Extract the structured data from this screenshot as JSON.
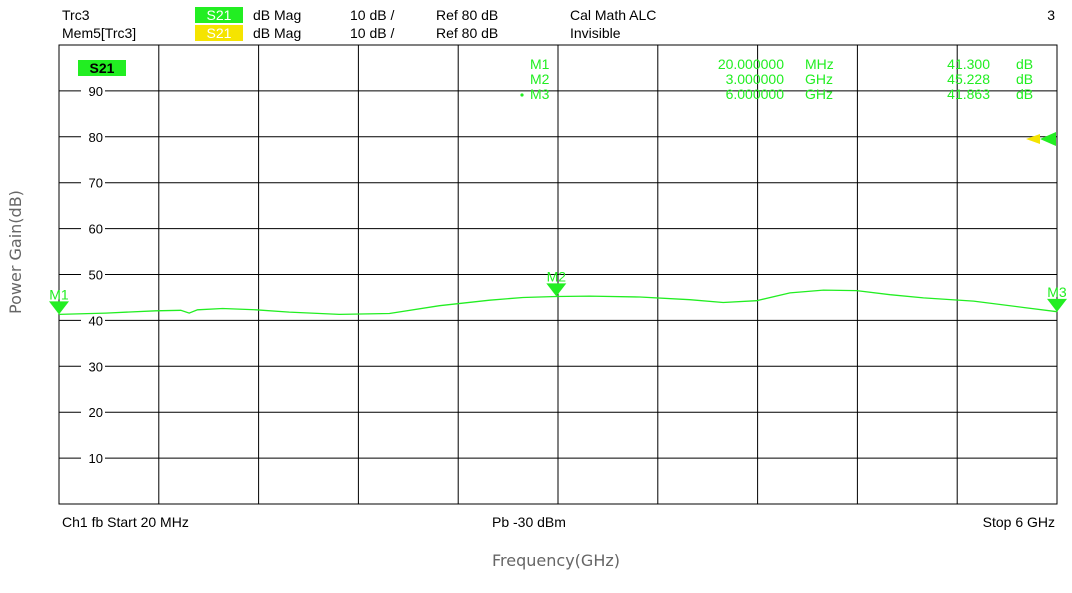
{
  "colors": {
    "trace": "#22ee22",
    "memory": "#f5e400",
    "grid": "#000000",
    "text": "#000000",
    "axis_title": "#666666"
  },
  "header": {
    "row1": {
      "trace": "Trc3",
      "param": "S21",
      "format": "dB Mag",
      "scale": "10 dB /",
      "ref": "Ref 80 dB",
      "status": "Cal Math ALC",
      "channel_num": "3"
    },
    "row2": {
      "trace": "Mem5[Trc3]",
      "param": "S21",
      "format": "dB Mag",
      "scale": "10 dB /",
      "ref": "Ref 80 dB",
      "status": "Invisible"
    }
  },
  "footer": {
    "start": "Ch1  fb  Start  20 MHz",
    "power": "Pb   -30 dBm",
    "stop": "Stop  6 GHz"
  },
  "trace_badge": "S21",
  "marker_table": [
    {
      "name": "M1",
      "freq": "20.000000",
      "unit": "MHz",
      "value": "41.300",
      "vunit": "dB",
      "active": false
    },
    {
      "name": "M2",
      "freq": "3.000000",
      "unit": "GHz",
      "value": "45.228",
      "vunit": "dB",
      "active": false
    },
    {
      "name": "M3",
      "freq": "6.000000",
      "unit": "GHz",
      "value": "41.863",
      "vunit": "dB",
      "active": true
    }
  ],
  "axis_titles": {
    "y": "Power Gain(dB)",
    "x": "Frequency(GHz)"
  },
  "chart_data": {
    "type": "line",
    "xlabel": "Frequency(GHz)",
    "ylabel": "Power Gain(dB)",
    "xlim": [
      0.02,
      6.0
    ],
    "ylim": [
      0,
      100
    ],
    "x_unit": "GHz",
    "y_unit": "dB",
    "x_divisions": 10,
    "y_divisions": 10,
    "yticks": [
      10,
      20,
      30,
      40,
      50,
      60,
      70,
      80,
      90
    ],
    "grid": true,
    "ref_level": 80,
    "series": [
      {
        "name": "S21",
        "x": [
          0.02,
          0.3,
          0.6,
          0.75,
          0.8,
          0.85,
          1.0,
          1.2,
          1.4,
          1.7,
          2.0,
          2.3,
          2.6,
          2.8,
          3.0,
          3.2,
          3.5,
          3.8,
          4.0,
          4.2,
          4.4,
          4.6,
          4.8,
          5.0,
          5.2,
          5.5,
          5.8,
          6.0
        ],
        "y": [
          41.3,
          41.6,
          42.1,
          42.2,
          41.6,
          42.3,
          42.6,
          42.3,
          41.8,
          41.3,
          41.5,
          43.2,
          44.4,
          45.0,
          45.2,
          45.3,
          45.1,
          44.5,
          43.9,
          44.3,
          46.0,
          46.6,
          46.5,
          45.6,
          44.9,
          44.2,
          42.8,
          41.9
        ]
      }
    ],
    "markers": [
      {
        "label": "M1",
        "x": 0.02,
        "y": 41.3
      },
      {
        "label": "M2",
        "x": 3.0,
        "y": 45.228
      },
      {
        "label": "M3",
        "x": 6.0,
        "y": 41.863
      }
    ]
  }
}
